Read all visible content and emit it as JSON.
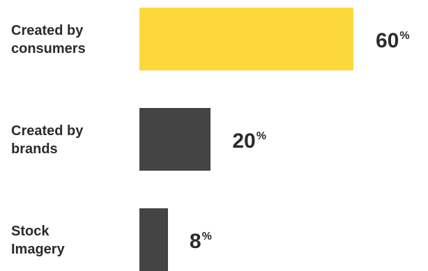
{
  "chart_data": {
    "type": "bar",
    "orientation": "horizontal",
    "categories": [
      [
        "Created by",
        "consumers"
      ],
      [
        "Created by",
        "brands"
      ],
      [
        "Stock",
        "Imagery"
      ]
    ],
    "values": [
      60,
      20,
      8
    ],
    "value_suffix": "%",
    "colors": [
      "#fcd83a",
      "#444444",
      "#444444"
    ],
    "grid": false,
    "legend": "none",
    "xlim": [
      0,
      100
    ]
  }
}
